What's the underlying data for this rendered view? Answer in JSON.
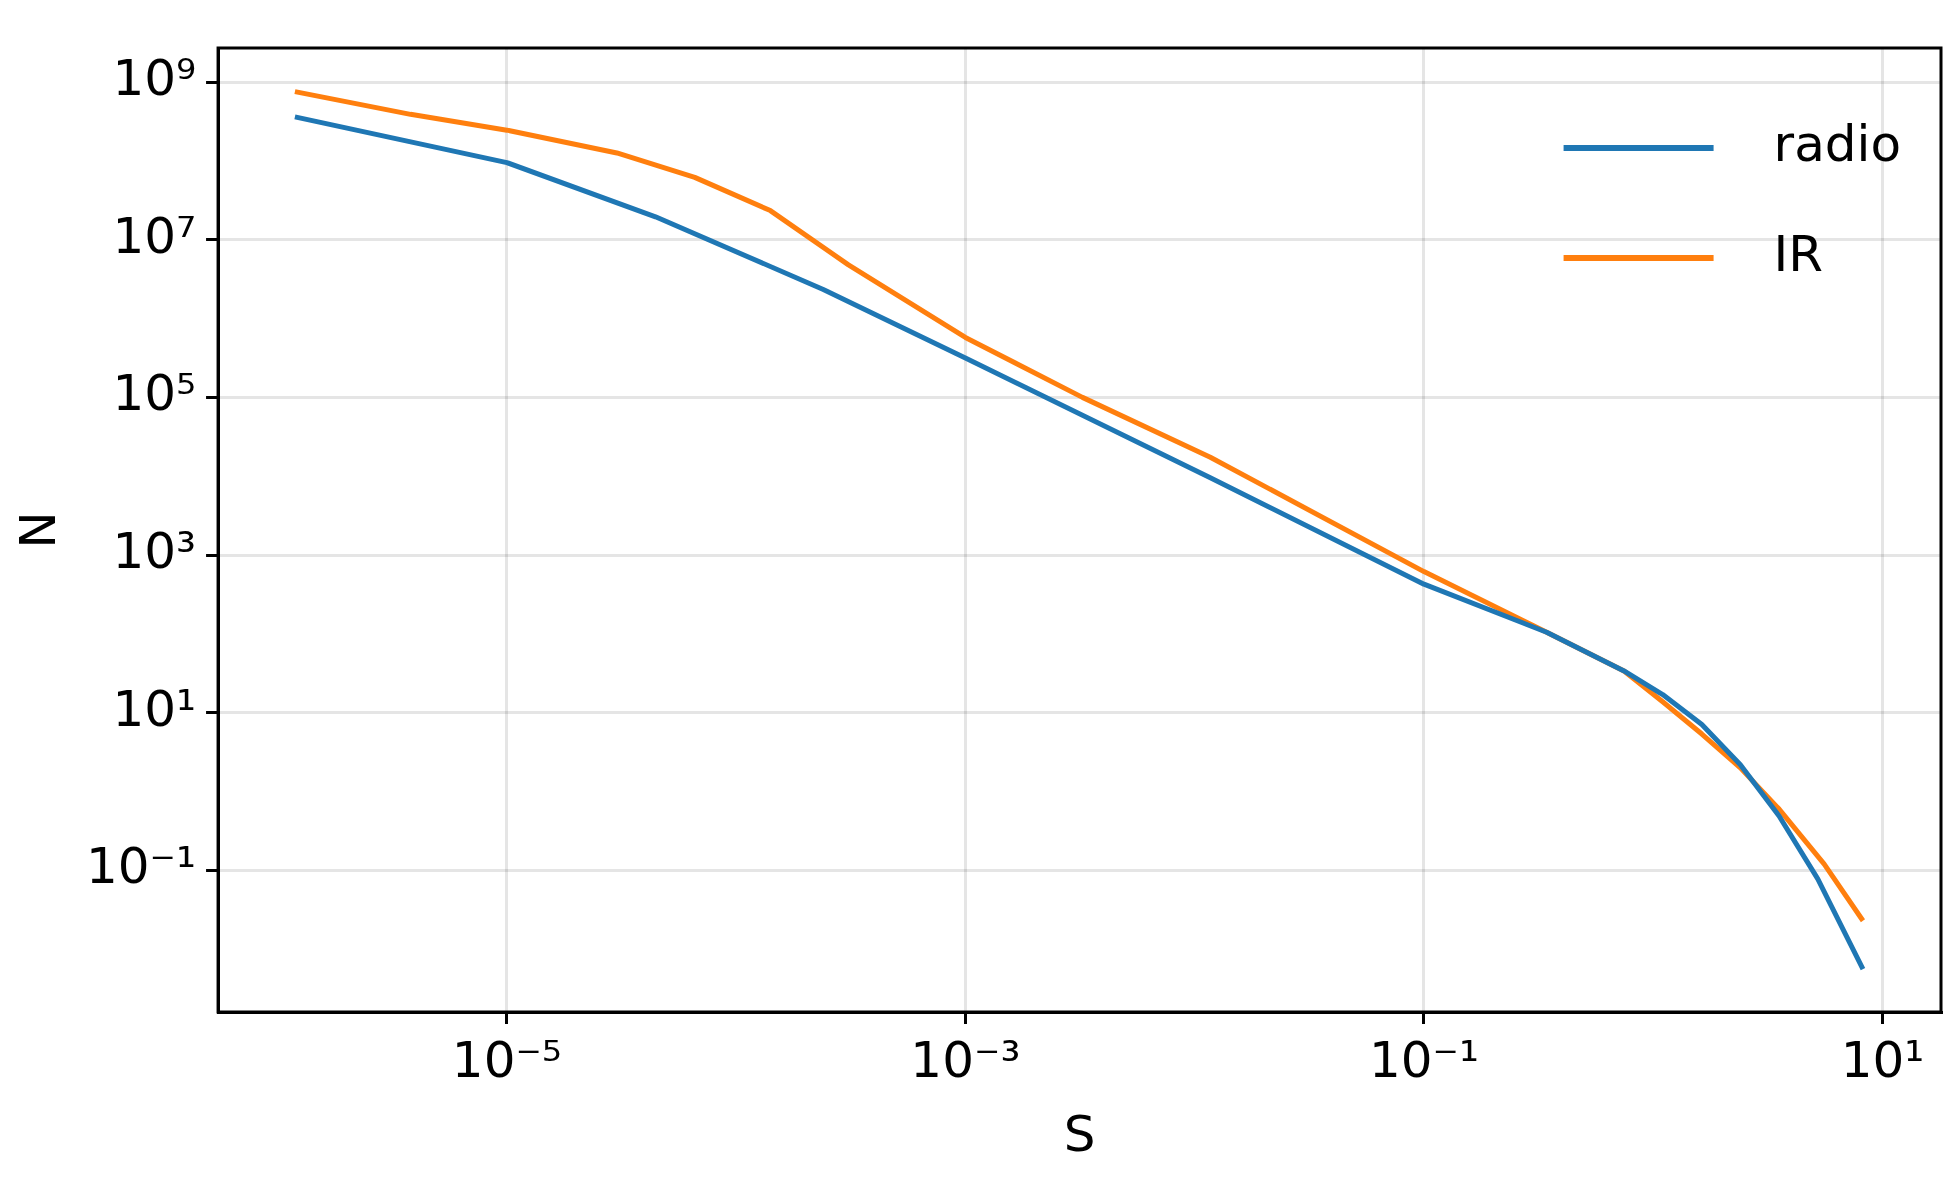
{
  "chart_data": {
    "type": "line",
    "xlabel": "S",
    "ylabel": "N",
    "log": "xy",
    "grid": true,
    "legend": "top right",
    "marker": "none",
    "line_style": "solid",
    "xlim": [
      5.5e-07,
      18
    ],
    "ylim": [
      0.0016,
      2700000000.0
    ],
    "xticks": [
      {
        "value": 1e-05,
        "label": "10⁻⁵"
      },
      {
        "value": 0.001,
        "label": "10⁻³"
      },
      {
        "value": 0.1,
        "label": "10⁻¹"
      },
      {
        "value": 10,
        "label": "10¹"
      }
    ],
    "yticks": [
      {
        "value": 0.1,
        "label": "10⁻¹"
      },
      {
        "value": 10,
        "label": "10¹"
      },
      {
        "value": 1000,
        "label": "10³"
      },
      {
        "value": 100000,
        "label": "10⁵"
      },
      {
        "value": 10000000,
        "label": "10⁷"
      },
      {
        "value": 1000000000,
        "label": "10⁹"
      }
    ],
    "series": [
      {
        "name": "radio",
        "color": "#1f77b4",
        "x": [
          1.19e-06,
          1e-05,
          4.45e-05,
          0.00024,
          0.001,
          0.0117,
          0.1,
          0.343,
          0.746,
          1.1,
          1.63,
          2.4,
          3.54,
          5.22,
          8.22
        ],
        "values": [
          361000000.0,
          95000000.0,
          19500000.0,
          2340000.0,
          316000.0,
          9550,
          427,
          105,
          33.9,
          17,
          7.08,
          2.19,
          0.49,
          0.078,
          0.0056
        ]
      },
      {
        "name": "IR",
        "color": "#ff7f0e",
        "x": [
          1.19e-06,
          3.8e-06,
          1e-05,
          3.02e-05,
          6.6e-05,
          0.000141,
          0.000309,
          0.001,
          0.00324,
          0.0117,
          0.1,
          0.343,
          0.746,
          1.1,
          1.63,
          2.4,
          3.54,
          5.57,
          8.22
        ],
        "values": [
          755000000.0,
          389000000.0,
          245000000.0,
          126000000.0,
          61700000.0,
          23400000.0,
          4790000.0,
          575000.0,
          100000.0,
          17400,
          617,
          105,
          33.9,
          13.8,
          5.37,
          2,
          0.6,
          0.12,
          0.023
        ]
      }
    ]
  }
}
